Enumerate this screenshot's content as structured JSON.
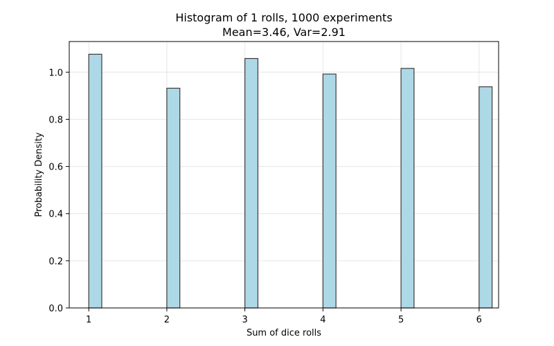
{
  "chart_data": {
    "type": "bar",
    "title": "Histogram of 1 rolls, 1000 experiments",
    "subtitle": "Mean=3.46, Var=2.91",
    "xlabel": "Sum of dice rolls",
    "ylabel": "Probability Density",
    "xlim": [
      0.75,
      6.25
    ],
    "ylim": [
      0.0,
      1.13
    ],
    "xticks": [
      1,
      2,
      3,
      4,
      5,
      6
    ],
    "yticks": [
      0.0,
      0.2,
      0.4,
      0.6,
      0.8,
      1.0
    ],
    "xtick_labels": [
      "1",
      "2",
      "3",
      "4",
      "5",
      "6"
    ],
    "ytick_labels": [
      "0.0",
      "0.2",
      "0.4",
      "0.6",
      "0.8",
      "1.0"
    ],
    "bin_width": 0.1667,
    "x": [
      1,
      2,
      3,
      4,
      5,
      6
    ],
    "values": [
      1.076,
      0.932,
      1.058,
      0.992,
      1.016,
      0.938
    ],
    "grid": true,
    "colors": {
      "bar_fill": "#add8e6",
      "bar_edge": "#3a3a3a",
      "grid": "#e6e6e6",
      "axis": "#000000"
    }
  }
}
